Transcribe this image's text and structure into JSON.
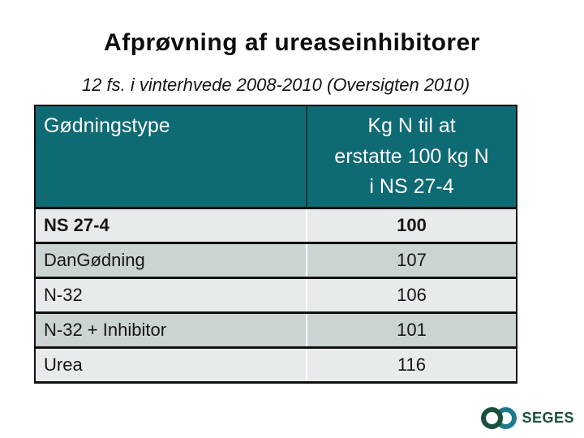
{
  "slide": {
    "title": "Afprøvning af ureaseinhibitorer",
    "subtitle": "12 fs. i vinterhvede 2008-2010 (Oversigten 2010)"
  },
  "table": {
    "header": {
      "col1": "Gødningstype",
      "col2": "Kg N til at\nerstatte 100 kg N\ni NS 27-4"
    },
    "rows": [
      {
        "label": "NS 27-4",
        "value": "100"
      },
      {
        "label": "DanGødning",
        "value": "107"
      },
      {
        "label": "N-32",
        "value": "106"
      },
      {
        "label": "N-32 + Inhibitor",
        "value": "101"
      },
      {
        "label": "Urea",
        "value": "116"
      }
    ]
  },
  "footer": {
    "logo_text": "SEGES"
  },
  "colors": {
    "header_bg": "#0e6a73",
    "row_dark": "#ccd3d3",
    "row_light": "#e7ebeb",
    "logo_green": "#1b4f3c",
    "logo_teal": "#1e7a8a"
  }
}
